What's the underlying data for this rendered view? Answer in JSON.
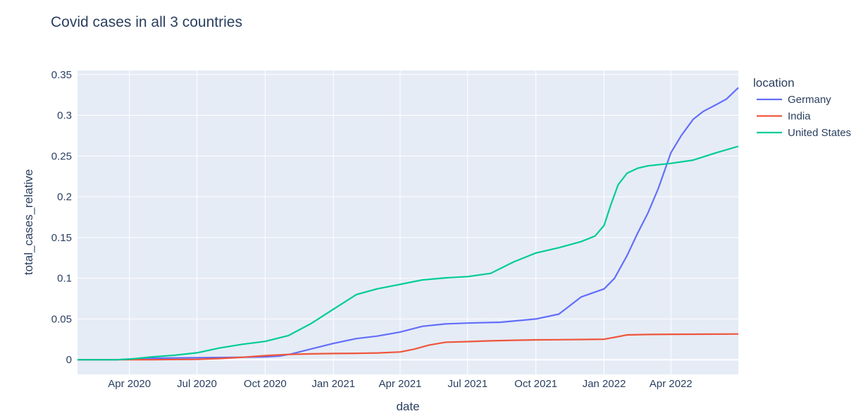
{
  "chart_data": {
    "type": "line",
    "title": "Covid cases in all 3 countries",
    "xlabel": "date",
    "ylabel": "total_cases_relative",
    "xlim": [
      "2020-01-22",
      "2022-07-01"
    ],
    "ylim": [
      -0.018,
      0.355
    ],
    "yticks": [
      0,
      0.05,
      0.1,
      0.15,
      0.2,
      0.25,
      0.3,
      0.35
    ],
    "ytick_labels": [
      "0",
      "0.05",
      "0.1",
      "0.15",
      "0.2",
      "0.25",
      "0.3",
      "0.35"
    ],
    "xticks": [
      "2020-04-01",
      "2020-07-01",
      "2020-10-01",
      "2021-01-01",
      "2021-04-01",
      "2021-07-01",
      "2021-10-01",
      "2022-01-01",
      "2022-04-01"
    ],
    "xtick_labels": [
      "Apr 2020",
      "Jul 2020",
      "Oct 2020",
      "Jan 2021",
      "Apr 2021",
      "Jul 2021",
      "Oct 2021",
      "Jan 2022",
      "Apr 2022"
    ],
    "grid": true,
    "legend": {
      "title": "location",
      "placement": "right"
    },
    "series": [
      {
        "name": "Germany",
        "color": "#636efa",
        "points": [
          [
            "2020-01-22",
            0
          ],
          [
            "2020-03-15",
            0
          ],
          [
            "2020-04-15",
            0.0015
          ],
          [
            "2020-05-15",
            0.002
          ],
          [
            "2020-07-01",
            0.0025
          ],
          [
            "2020-09-01",
            0.003
          ],
          [
            "2020-10-01",
            0.0035
          ],
          [
            "2020-10-20",
            0.0045
          ],
          [
            "2020-11-05",
            0.007
          ],
          [
            "2020-12-01",
            0.013
          ],
          [
            "2021-01-01",
            0.02
          ],
          [
            "2021-02-01",
            0.026
          ],
          [
            "2021-03-01",
            0.029
          ],
          [
            "2021-04-01",
            0.034
          ],
          [
            "2021-05-01",
            0.041
          ],
          [
            "2021-06-01",
            0.044
          ],
          [
            "2021-07-01",
            0.045
          ],
          [
            "2021-08-15",
            0.046
          ],
          [
            "2021-10-01",
            0.05
          ],
          [
            "2021-11-01",
            0.056
          ],
          [
            "2021-12-01",
            0.077
          ],
          [
            "2022-01-01",
            0.087
          ],
          [
            "2022-01-15",
            0.1
          ],
          [
            "2022-02-01",
            0.128
          ],
          [
            "2022-02-15",
            0.155
          ],
          [
            "2022-03-01",
            0.18
          ],
          [
            "2022-03-15",
            0.21
          ],
          [
            "2022-04-01",
            0.254
          ],
          [
            "2022-04-15",
            0.275
          ],
          [
            "2022-05-01",
            0.295
          ],
          [
            "2022-05-15",
            0.305
          ],
          [
            "2022-06-01",
            0.313
          ],
          [
            "2022-06-15",
            0.32
          ],
          [
            "2022-07-01",
            0.334
          ]
        ]
      },
      {
        "name": "India",
        "color": "#ef553b",
        "points": [
          [
            "2020-01-22",
            0
          ],
          [
            "2020-05-01",
            0
          ],
          [
            "2020-07-01",
            0.0005
          ],
          [
            "2020-08-01",
            0.0015
          ],
          [
            "2020-09-01",
            0.003
          ],
          [
            "2020-10-01",
            0.005
          ],
          [
            "2020-11-01",
            0.0065
          ],
          [
            "2020-12-01",
            0.0072
          ],
          [
            "2021-01-01",
            0.0076
          ],
          [
            "2021-02-01",
            0.0079
          ],
          [
            "2021-03-01",
            0.0083
          ],
          [
            "2021-04-01",
            0.0095
          ],
          [
            "2021-04-20",
            0.013
          ],
          [
            "2021-05-10",
            0.018
          ],
          [
            "2021-06-01",
            0.0215
          ],
          [
            "2021-07-01",
            0.0222
          ],
          [
            "2021-08-01",
            0.0232
          ],
          [
            "2021-09-01",
            0.0239
          ],
          [
            "2021-10-01",
            0.0244
          ],
          [
            "2021-11-01",
            0.0246
          ],
          [
            "2021-12-01",
            0.0248
          ],
          [
            "2022-01-01",
            0.0252
          ],
          [
            "2022-01-15",
            0.0275
          ],
          [
            "2022-02-01",
            0.0305
          ],
          [
            "2022-03-01",
            0.031
          ],
          [
            "2022-04-01",
            0.0312
          ],
          [
            "2022-05-01",
            0.0313
          ],
          [
            "2022-07-01",
            0.0316
          ]
        ]
      },
      {
        "name": "United States",
        "color": "#00cc96",
        "points": [
          [
            "2020-01-22",
            0
          ],
          [
            "2020-03-15",
            0
          ],
          [
            "2020-04-01",
            0.0008
          ],
          [
            "2020-05-01",
            0.0035
          ],
          [
            "2020-06-01",
            0.0055
          ],
          [
            "2020-07-01",
            0.0085
          ],
          [
            "2020-08-01",
            0.0145
          ],
          [
            "2020-09-01",
            0.019
          ],
          [
            "2020-10-01",
            0.0225
          ],
          [
            "2020-11-01",
            0.0295
          ],
          [
            "2020-12-01",
            0.044
          ],
          [
            "2021-01-01",
            0.062
          ],
          [
            "2021-02-01",
            0.08
          ],
          [
            "2021-03-01",
            0.087
          ],
          [
            "2021-04-01",
            0.0925
          ],
          [
            "2021-05-01",
            0.098
          ],
          [
            "2021-06-01",
            0.1005
          ],
          [
            "2021-07-01",
            0.102
          ],
          [
            "2021-08-01",
            0.106
          ],
          [
            "2021-09-01",
            0.12
          ],
          [
            "2021-10-01",
            0.131
          ],
          [
            "2021-11-01",
            0.1375
          ],
          [
            "2021-12-01",
            0.145
          ],
          [
            "2021-12-20",
            0.152
          ],
          [
            "2022-01-01",
            0.165
          ],
          [
            "2022-01-10",
            0.19
          ],
          [
            "2022-01-20",
            0.215
          ],
          [
            "2022-02-01",
            0.229
          ],
          [
            "2022-02-15",
            0.235
          ],
          [
            "2022-03-01",
            0.238
          ],
          [
            "2022-04-01",
            0.241
          ],
          [
            "2022-05-01",
            0.245
          ],
          [
            "2022-06-01",
            0.254
          ],
          [
            "2022-07-01",
            0.262
          ]
        ]
      }
    ]
  }
}
